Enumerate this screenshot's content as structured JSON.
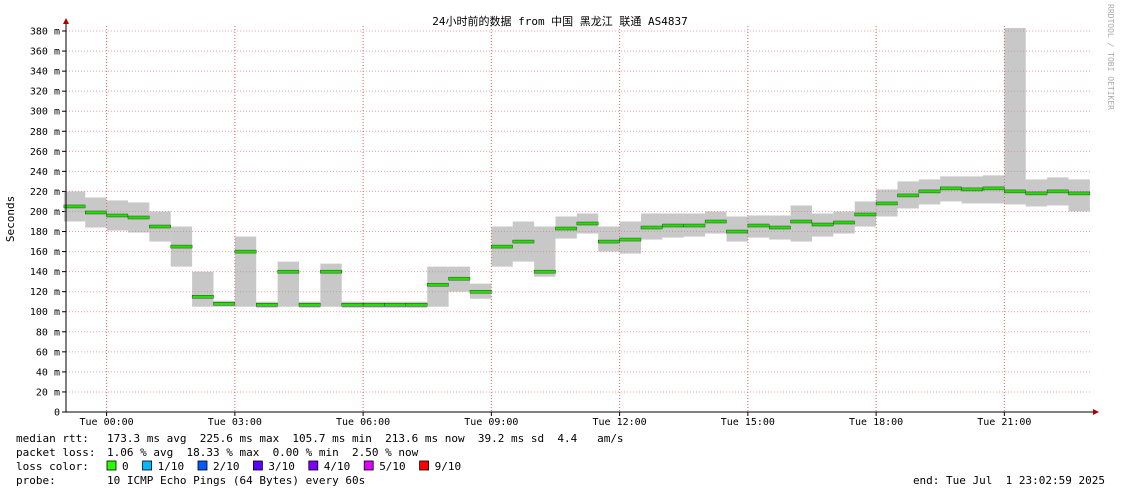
{
  "chart_data": {
    "type": "smokeping",
    "title": "24小时前的数据 from 中国 黑龙江 联通 AS4837",
    "y_label": "Seconds",
    "watermark": "RRDTOOL / TOBI OETIKER",
    "xlim": [
      -0.95,
      23.05
    ],
    "ylim": [
      0,
      0.385
    ],
    "xticks": [
      {
        "value": 0,
        "label": "Tue 00:00"
      },
      {
        "value": 3,
        "label": "Tue 03:00"
      },
      {
        "value": 6,
        "label": "Tue 06:00"
      },
      {
        "value": 9,
        "label": "Tue 09:00"
      },
      {
        "value": 12,
        "label": "Tue 12:00"
      },
      {
        "value": 15,
        "label": "Tue 15:00"
      },
      {
        "value": 18,
        "label": "Tue 18:00"
      },
      {
        "value": 21,
        "label": "Tue 21:00"
      }
    ],
    "yticks": [
      0,
      {
        "value": 0.02,
        "label": "20 m"
      },
      {
        "value": 0.04,
        "label": "40 m"
      },
      {
        "value": 0.06,
        "label": "60 m"
      },
      {
        "value": 0.08,
        "label": "80 m"
      },
      {
        "value": 0.1,
        "label": "100 m"
      },
      {
        "value": 0.12,
        "label": "120 m"
      },
      {
        "value": 0.14,
        "label": "140 m"
      },
      {
        "value": 0.16,
        "label": "160 m"
      },
      {
        "value": 0.18,
        "label": "180 m"
      },
      {
        "value": 0.2,
        "label": "200 m"
      },
      {
        "value": 0.22,
        "label": "220 m"
      },
      {
        "value": 0.24,
        "label": "240 m"
      },
      {
        "value": 0.26,
        "label": "260 m"
      },
      {
        "value": 0.28,
        "label": "280 m"
      },
      {
        "value": 0.3,
        "label": "300 m"
      },
      {
        "value": 0.32,
        "label": "320 m"
      },
      {
        "value": 0.34,
        "label": "340 m"
      },
      {
        "value": 0.36,
        "label": "360 m"
      },
      {
        "value": 0.38,
        "label": "380 m"
      }
    ],
    "grid": true,
    "step": 0.5,
    "median_color": "#22e000",
    "smoke_color": "#9a9a9a",
    "x": [
      -0.75,
      -0.25,
      0.25,
      0.75,
      1.25,
      1.75,
      2.25,
      2.75,
      3.25,
      3.75,
      4.25,
      4.75,
      5.25,
      5.75,
      6.25,
      6.75,
      7.25,
      7.75,
      8.25,
      8.75,
      9.25,
      9.75,
      10.25,
      10.75,
      11.25,
      11.75,
      12.25,
      12.75,
      13.25,
      13.75,
      14.25,
      14.75,
      15.25,
      15.75,
      16.25,
      16.75,
      17.25,
      17.75,
      18.25,
      18.75,
      19.25,
      19.75,
      20.25,
      20.75,
      21.25,
      21.75,
      22.25,
      22.75
    ],
    "median": [
      0.205,
      0.199,
      0.196,
      0.194,
      0.185,
      0.165,
      0.115,
      0.108,
      0.16,
      0.107,
      0.14,
      0.107,
      0.14,
      0.107,
      0.107,
      0.107,
      0.107,
      0.127,
      0.133,
      0.12,
      0.165,
      0.17,
      0.14,
      0.183,
      0.188,
      0.17,
      0.172,
      0.184,
      0.186,
      0.186,
      0.19,
      0.18,
      0.186,
      0.184,
      0.19,
      0.187,
      0.189,
      0.197,
      0.208,
      0.216,
      0.22,
      0.223,
      0.222,
      0.223,
      0.22,
      0.218,
      0.22,
      0.218
    ],
    "smoke_low": [
      0.19,
      0.184,
      0.181,
      0.179,
      0.17,
      0.145,
      0.105,
      0.105,
      0.105,
      0.104,
      0.105,
      0.104,
      0.105,
      0.104,
      0.104,
      0.104,
      0.104,
      0.105,
      0.12,
      0.113,
      0.145,
      0.15,
      0.135,
      0.173,
      0.178,
      0.16,
      0.158,
      0.172,
      0.174,
      0.175,
      0.178,
      0.17,
      0.174,
      0.172,
      0.17,
      0.175,
      0.178,
      0.185,
      0.195,
      0.203,
      0.207,
      0.21,
      0.208,
      0.208,
      0.207,
      0.205,
      0.206,
      0.2
    ],
    "smoke_high": [
      0.22,
      0.214,
      0.211,
      0.209,
      0.2,
      0.185,
      0.14,
      0.111,
      0.175,
      0.11,
      0.15,
      0.11,
      0.148,
      0.11,
      0.11,
      0.11,
      0.11,
      0.145,
      0.145,
      0.128,
      0.185,
      0.19,
      0.185,
      0.195,
      0.198,
      0.185,
      0.19,
      0.198,
      0.198,
      0.198,
      0.2,
      0.195,
      0.196,
      0.196,
      0.206,
      0.198,
      0.2,
      0.21,
      0.222,
      0.23,
      0.232,
      0.235,
      0.235,
      0.236,
      0.383,
      0.232,
      0.234,
      0.232
    ],
    "stats": [
      {
        "label": "median rtt:",
        "text": "173.3 ms avg  225.6 ms max  105.7 ms min  213.6 ms now  39.2 ms sd  4.4   am/s"
      },
      {
        "label": "packet loss:",
        "text": "1.06 % avg  18.33 % max  0.00 % min  2.50 % now"
      }
    ],
    "loss_label": "loss color:",
    "loss_colors": [
      {
        "label": "0",
        "color": "#26ff00"
      },
      {
        "label": "1/10",
        "color": "#00b8ff"
      },
      {
        "label": "2/10",
        "color": "#0059ff"
      },
      {
        "label": "3/10",
        "color": "#5e00ff"
      },
      {
        "label": "4/10",
        "color": "#7e00ff"
      },
      {
        "label": "5/10",
        "color": "#dd00ff"
      },
      {
        "label": "9/10",
        "color": "#ff0000"
      }
    ],
    "probe_label": "probe:",
    "probe": "10 ICMP Echo Pings (64 Bytes) every 60s",
    "end": "end: Tue Jul  1 23:02:59 2025"
  }
}
